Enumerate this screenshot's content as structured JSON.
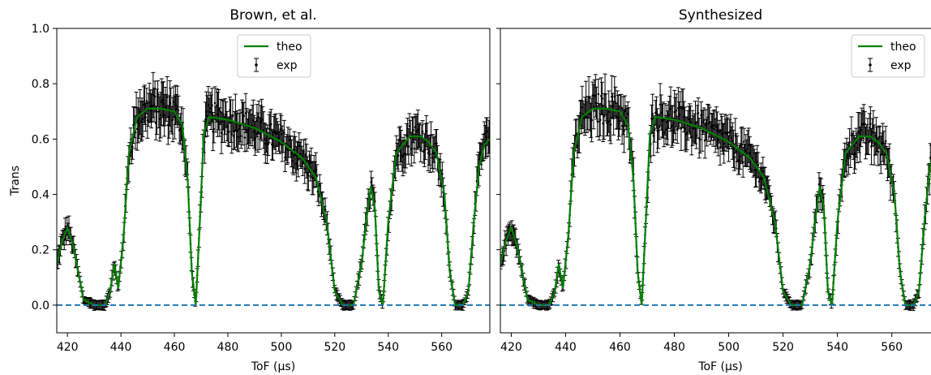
{
  "chart_data": [
    {
      "type": "line",
      "title": "Brown, et al.",
      "xlabel": "ToF (μs)",
      "ylabel": "Trans",
      "xlim": [
        416,
        578
      ],
      "ylim": [
        -0.1,
        1.0
      ],
      "xticks": [
        420,
        440,
        460,
        480,
        500,
        520,
        540,
        560
      ],
      "yticks": [
        0.0,
        0.2,
        0.4,
        0.6,
        0.8,
        1.0
      ],
      "legend": [
        "theo",
        "exp"
      ],
      "legend_position": "top-right",
      "baseline": 0.0,
      "series": [
        {
          "name": "theo",
          "color": "#008000",
          "x": [
            416,
            418,
            420,
            422,
            424,
            426,
            430,
            434,
            436,
            437.5,
            439,
            441,
            443,
            446,
            450,
            455,
            460,
            463,
            465,
            466.5,
            468,
            469.5,
            471,
            473,
            480,
            490,
            500,
            508,
            513,
            517,
            520,
            523,
            527,
            530,
            532,
            533.5,
            535,
            536.5,
            538,
            540,
            543,
            548,
            552,
            555,
            558,
            561,
            563,
            565,
            568,
            570,
            572,
            574,
            576,
            578
          ],
          "y": [
            0.15,
            0.23,
            0.28,
            0.22,
            0.12,
            0.02,
            0.0,
            0.0,
            0.05,
            0.15,
            0.06,
            0.25,
            0.55,
            0.68,
            0.71,
            0.71,
            0.7,
            0.65,
            0.45,
            0.12,
            0.0,
            0.3,
            0.62,
            0.68,
            0.67,
            0.64,
            0.59,
            0.53,
            0.46,
            0.3,
            0.05,
            0.0,
            0.0,
            0.15,
            0.32,
            0.43,
            0.35,
            0.05,
            0.0,
            0.3,
            0.55,
            0.61,
            0.61,
            0.59,
            0.55,
            0.4,
            0.12,
            0.0,
            0.0,
            0.05,
            0.3,
            0.5,
            0.58,
            0.6
          ]
        },
        {
          "name": "exp",
          "color": "#000000",
          "type": "errorbar"
        }
      ]
    },
    {
      "type": "line",
      "title": "Synthesized",
      "xlabel": "ToF (μs)",
      "ylabel": "",
      "xlim": [
        416,
        578
      ],
      "ylim": [
        -0.1,
        1.0
      ],
      "xticks": [
        420,
        440,
        460,
        480,
        500,
        520,
        540,
        560
      ],
      "yticks": [
        0.0,
        0.2,
        0.4,
        0.6,
        0.8,
        1.0
      ],
      "legend": [
        "theo",
        "exp"
      ],
      "legend_position": "top-right",
      "baseline": 0.0,
      "series": [
        {
          "name": "theo",
          "color": "#008000",
          "x": [
            416,
            418,
            420,
            422,
            424,
            426,
            430,
            434,
            436,
            437.5,
            439,
            441,
            443,
            446,
            450,
            455,
            460,
            463,
            465,
            466.5,
            468,
            469.5,
            471,
            473,
            480,
            490,
            500,
            508,
            513,
            517,
            520,
            523,
            527,
            530,
            532,
            533.5,
            535,
            536.5,
            538,
            540,
            543,
            548,
            552,
            555,
            558,
            561,
            563,
            565,
            568,
            570,
            572,
            574,
            576,
            578
          ],
          "y": [
            0.15,
            0.23,
            0.28,
            0.22,
            0.12,
            0.02,
            0.0,
            0.0,
            0.05,
            0.15,
            0.06,
            0.25,
            0.55,
            0.68,
            0.71,
            0.71,
            0.7,
            0.65,
            0.45,
            0.12,
            0.0,
            0.3,
            0.62,
            0.68,
            0.67,
            0.64,
            0.59,
            0.53,
            0.46,
            0.3,
            0.05,
            0.0,
            0.0,
            0.15,
            0.32,
            0.43,
            0.35,
            0.05,
            0.0,
            0.3,
            0.55,
            0.61,
            0.61,
            0.59,
            0.55,
            0.4,
            0.12,
            0.0,
            0.0,
            0.05,
            0.3,
            0.5,
            0.58,
            0.6
          ]
        },
        {
          "name": "exp",
          "color": "#000000",
          "type": "errorbar"
        }
      ]
    }
  ],
  "colors": {
    "theo": "#008000",
    "exp": "#000000",
    "baseline": "#1f77b4"
  }
}
